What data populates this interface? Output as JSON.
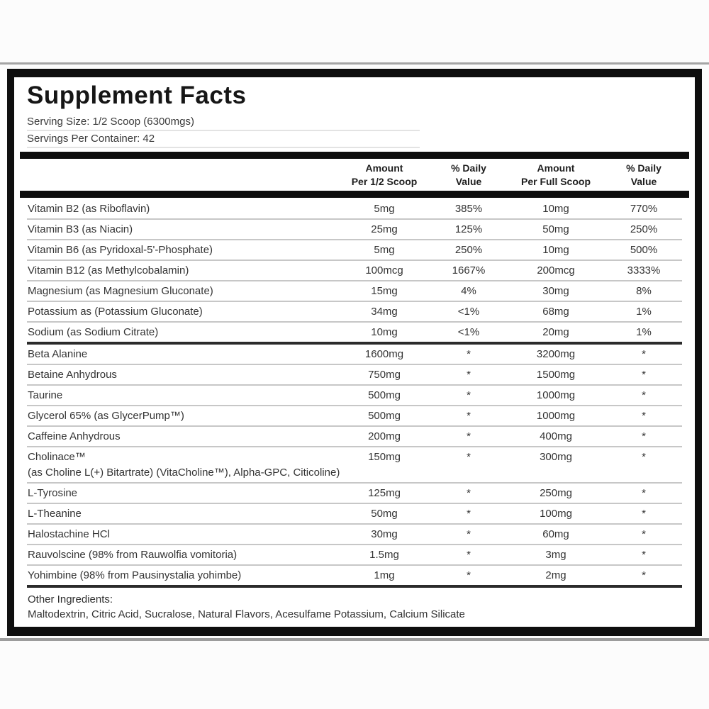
{
  "panel": {
    "title": "Supplement Facts",
    "serving_size": "Serving Size: 1/2 Scoop (6300mgs)",
    "servings_per_container": "Servings Per Container: 42",
    "columns": [
      {
        "line1": "Amount",
        "line2": "Per 1/2 Scoop"
      },
      {
        "line1": "% Daily",
        "line2": "Value"
      },
      {
        "line1": "Amount",
        "line2": "Per Full Scoop"
      },
      {
        "line1": "% Daily",
        "line2": "Value"
      }
    ],
    "rows": [
      {
        "name": "Vitamin B2 (as Riboflavin)",
        "half": "5mg",
        "dv_half": "385%",
        "full": "10mg",
        "dv_full": "770%"
      },
      {
        "name": "Vitamin B3 (as Niacin)",
        "half": "25mg",
        "dv_half": "125%",
        "full": "50mg",
        "dv_full": "250%"
      },
      {
        "name": "Vitamin B6 (as Pyridoxal-5'-Phosphate)",
        "half": "5mg",
        "dv_half": "250%",
        "full": "10mg",
        "dv_full": "500%"
      },
      {
        "name": "Vitamin B12 (as Methylcobalamin)",
        "half": "100mcg",
        "dv_half": "1667%",
        "full": "200mcg",
        "dv_full": "3333%"
      },
      {
        "name": "Magnesium (as Magnesium Gluconate)",
        "half": "15mg",
        "dv_half": "4%",
        "full": "30mg",
        "dv_full": "8%"
      },
      {
        "name": "Potassium  as (Potassium Gluconate)",
        "half": "34mg",
        "dv_half": "<1%",
        "full": "68mg",
        "dv_full": "1%"
      },
      {
        "name": "Sodium (as Sodium Citrate)",
        "half": "10mg",
        "dv_half": "<1%",
        "full": "20mg",
        "dv_full": "1%",
        "section_end": true
      },
      {
        "name": "Beta Alanine",
        "half": "1600mg",
        "dv_half": "*",
        "full": "3200mg",
        "dv_full": "*"
      },
      {
        "name": "Betaine Anhydrous",
        "half": "750mg",
        "dv_half": "*",
        "full": "1500mg",
        "dv_full": "*"
      },
      {
        "name": "Taurine",
        "half": "500mg",
        "dv_half": "*",
        "full": "1000mg",
        "dv_full": "*"
      },
      {
        "name": "Glycerol 65% (as GlycerPump™)",
        "half": "500mg",
        "dv_half": "*",
        "full": "1000mg",
        "dv_full": "*"
      },
      {
        "name": "Caffeine Anhydrous",
        "half": "200mg",
        "dv_half": "*",
        "full": "400mg",
        "dv_full": "*"
      },
      {
        "name": "Cholinace™",
        "half": "150mg",
        "dv_half": "*",
        "full": "300mg",
        "dv_full": "*",
        "sub": "(as Choline L(+) Bitartrate) (VitaCholine™), Alpha-GPC, Citicoline)"
      },
      {
        "name": "L-Tyrosine",
        "half": "125mg",
        "dv_half": "*",
        "full": "250mg",
        "dv_full": "*"
      },
      {
        "name": "L-Theanine",
        "half": "50mg",
        "dv_half": "*",
        "full": "100mg",
        "dv_full": "*"
      },
      {
        "name": "Halostachine HCl",
        "half": "30mg",
        "dv_half": "*",
        "full": "60mg",
        "dv_full": "*"
      },
      {
        "name": "Rauvolscine (98% from Rauwolfia vomitoria)",
        "half": "1.5mg",
        "dv_half": "*",
        "full": "3mg",
        "dv_full": "*"
      },
      {
        "name": "Yohimbine (98% from Pausinystalia yohimbe)",
        "half": "1mg",
        "dv_half": "*",
        "full": "2mg",
        "dv_full": "*",
        "section_end": true
      }
    ],
    "other_ingredients_heading": "Other Ingredients:",
    "other_ingredients": "Maltodextrin, Citric Acid, Sucralose, Natural Flavors, Acesulfame Potassium, Calcium Silicate"
  },
  "colors": {
    "border": "#0e0e0e",
    "bar": "#0d0d0d",
    "row_line": "#c7c7c7",
    "section_line": "#2b2b2b",
    "text": "#333333"
  }
}
